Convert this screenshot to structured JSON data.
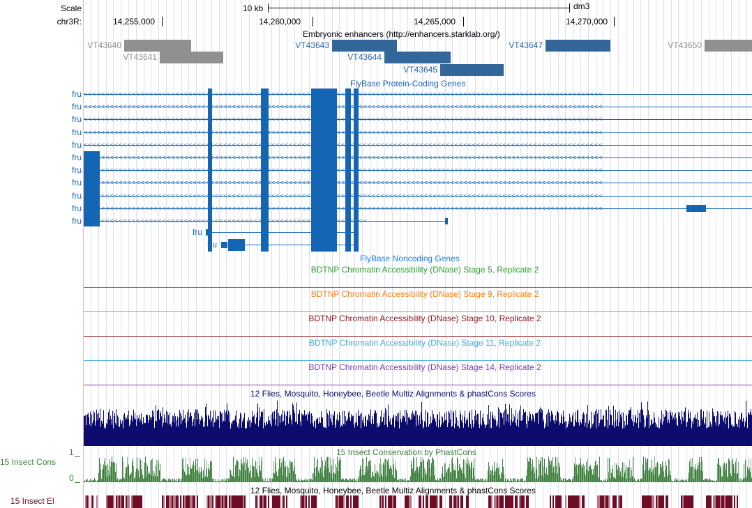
{
  "ruler": {
    "scale_label": "Scale",
    "chrom_label": "chr3R:",
    "scale_bar": "10 kb",
    "assembly": "dm3",
    "ticks": [
      "14,255,000",
      "14,260,000",
      "14,265,000",
      "14,270,000"
    ]
  },
  "enhancers": {
    "title": "Embryonic enhancers (http://enhancers.starklab.org/)",
    "items": [
      {
        "name": "VT43640"
      },
      {
        "name": "VT43641"
      },
      {
        "name": "VT43643"
      },
      {
        "name": "VT43644"
      },
      {
        "name": "VT43645"
      },
      {
        "name": "VT43647"
      },
      {
        "name": "VT43650"
      }
    ]
  },
  "genes": {
    "title": "FlyBase Protein-Coding Genes",
    "gene_label": "fru",
    "labels": [
      "fru",
      "fru",
      "fru",
      "fru",
      "fru",
      "fru",
      "fru",
      "fru",
      "fru",
      "fru",
      "fru",
      "fru",
      "fru"
    ]
  },
  "noncoding": {
    "title": "FlyBase Noncoding Genes"
  },
  "dnase": [
    {
      "title": "BDTNP Chromatin Accessibility (DNase) Stage 5, Replicate 2",
      "color": "#2ca02c"
    },
    {
      "title": "BDTNP Chromatin Accessibility (DNase) Stage 9, Replicate 2",
      "color": "#ff7f0e"
    },
    {
      "title": "BDTNP Chromatin Accessibility (DNase) Stage 10, Replicate 2",
      "color": "#8b1a1a"
    },
    {
      "title": "BDTNP Chromatin Accessibility (DNase) Stage 11, Replicate 2",
      "color": "#3fa9d6"
    },
    {
      "title": "BDTNP Chromatin Accessibility (DNase) Stage 14, Replicate 2",
      "color": "#7a3fa9"
    }
  ],
  "multiz": {
    "title": "12 Flies, Mosquito, Honeybee, Beetle Multiz Alignments & phastCons Scores",
    "color": "#0c0c6e"
  },
  "phastcons": {
    "title": "15 Insect Conservation by PhastCons",
    "side_label": "15 Insect Cons",
    "ymax": "1",
    "ymin": "0",
    "color": "#3f7f3f"
  },
  "elements": {
    "title": "12 Flies, Mosquito, Honeybee, Beetle Multiz Alignments & phastCons Scores",
    "side_label": "15 Insect El",
    "color": "#6e0d25"
  }
}
